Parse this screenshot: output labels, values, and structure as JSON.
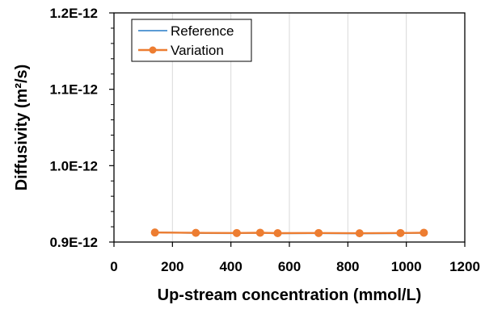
{
  "chart_data": {
    "type": "line",
    "title": "",
    "xlabel": "Up-stream concentration (mmol/L)",
    "ylabel": "Diffusivity (m²/s)",
    "xlim": [
      0,
      1200
    ],
    "ylim": [
      9e-13,
      1.2e-12
    ],
    "x_ticks": [
      0,
      200,
      400,
      600,
      800,
      1000,
      1200
    ],
    "x_tick_labels": [
      "0",
      "200",
      "400",
      "600",
      "800",
      "1000",
      "1200"
    ],
    "y_ticks": [
      9e-13,
      1e-12,
      1.1e-12,
      1.2e-12
    ],
    "y_tick_labels": [
      "0.9E-12",
      "1.0E-12",
      "1.1E-12",
      "1.2E-12"
    ],
    "grid": "vertical",
    "legend_position": "top-left",
    "series": [
      {
        "name": "Reference",
        "color": "#5B9BD5",
        "markers": false,
        "x": [
          140,
          280,
          420,
          500,
          560,
          700,
          840,
          980,
          1060
        ],
        "y": [
          9.128e-13,
          9.117e-13,
          9.115e-13,
          9.12e-13,
          9.113e-13,
          9.115e-13,
          9.112e-13,
          9.115e-13,
          9.12e-13
        ]
      },
      {
        "name": "Variation",
        "color": "#ED7D31",
        "markers": true,
        "x": [
          140,
          280,
          420,
          500,
          560,
          700,
          840,
          980,
          1060
        ],
        "y": [
          9.125e-13,
          9.12e-13,
          9.118e-13,
          9.122e-13,
          9.116e-13,
          9.118e-13,
          9.115e-13,
          9.118e-13,
          9.122e-13
        ]
      }
    ]
  }
}
